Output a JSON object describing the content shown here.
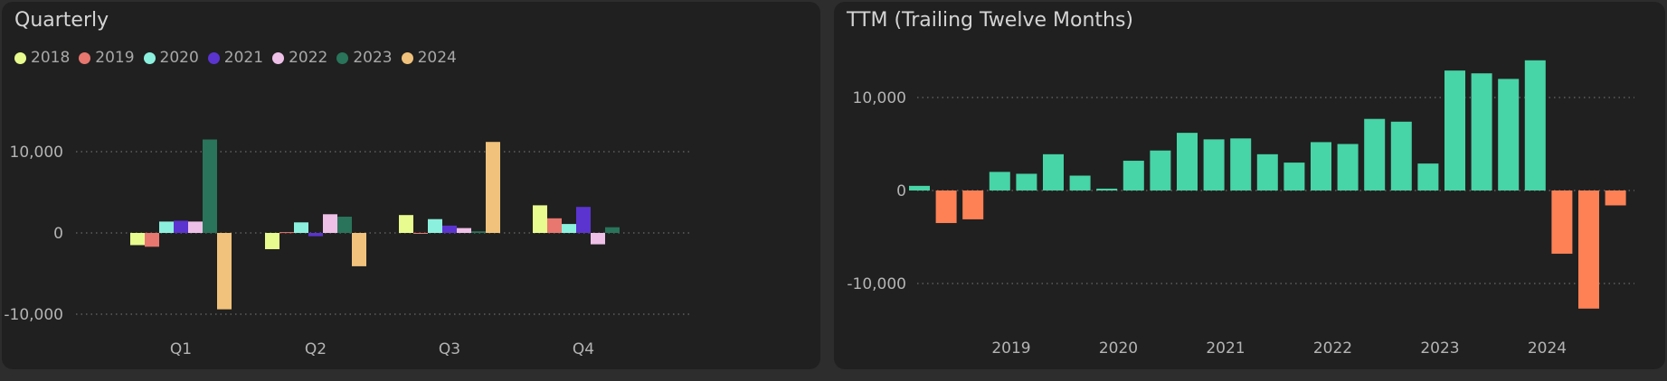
{
  "quarterly": {
    "title": "Quarterly",
    "chart_data": {
      "type": "bar",
      "title": "Quarterly",
      "categories": [
        "Q1",
        "Q2",
        "Q3",
        "Q4"
      ],
      "ylim": [
        -10500,
        12000
      ],
      "yticks": [
        -10000,
        0,
        10000
      ],
      "ytick_labels": [
        "-10,000",
        "0",
        "10,000"
      ],
      "grid": true,
      "legend_position": "top-left",
      "series": [
        {
          "name": "2018",
          "color": "#e8fb8e",
          "values": [
            -1500,
            -2000,
            2200,
            3400
          ]
        },
        {
          "name": "2019",
          "color": "#e8776f",
          "values": [
            -1700,
            100,
            -100,
            1800
          ]
        },
        {
          "name": "2020",
          "color": "#8cf0de",
          "values": [
            1400,
            1300,
            1700,
            1100
          ]
        },
        {
          "name": "2021",
          "color": "#5b34d0",
          "values": [
            1500,
            -400,
            900,
            3200
          ]
        },
        {
          "name": "2022",
          "color": "#eec0e8",
          "values": [
            1400,
            2300,
            600,
            -1400
          ]
        },
        {
          "name": "2023",
          "color": "#29745a",
          "values": [
            11500,
            2000,
            200,
            700
          ]
        },
        {
          "name": "2024",
          "color": "#f1c27b",
          "values": [
            -9400,
            -4100,
            11200,
            0
          ]
        }
      ]
    }
  },
  "ttm": {
    "title": "TTM (Trailing Twelve Months)",
    "chart_data": {
      "type": "bar",
      "title": "TTM (Trailing Twelve Months)",
      "ylim": [
        -13000,
        14500
      ],
      "yticks": [
        -10000,
        0,
        10000
      ],
      "ytick_labels": [
        "-10,000",
        "0",
        "10,000"
      ],
      "xtick_labels": [
        "2019",
        "2020",
        "2021",
        "2022",
        "2023",
        "2024"
      ],
      "grid": true,
      "positive_color": "#47d4a6",
      "negative_color": "#fe8155",
      "values": [
        500,
        -3500,
        -3100,
        2000,
        1800,
        3900,
        1600,
        200,
        3200,
        4300,
        6200,
        5500,
        5600,
        3900,
        3000,
        5200,
        5000,
        7700,
        7400,
        2900,
        12900,
        12600,
        12000,
        14000,
        -6800,
        -12700,
        -1600
      ]
    }
  }
}
